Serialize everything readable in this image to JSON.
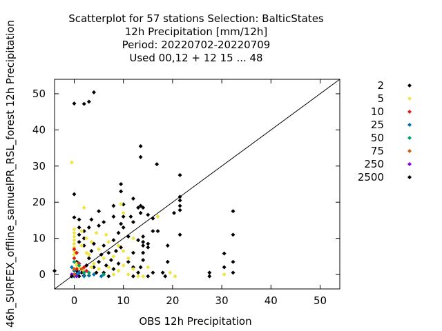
{
  "chart_data": {
    "type": "scatter",
    "title_lines": [
      "Scatterplot for   57 stations Selection: BalticStates",
      "12h Precipitation [mm/12h]",
      "Period: 20220702-20220709",
      "Used  00,12  + 12 15 ... 48"
    ],
    "xlabel": "OBS 12h Precipitation",
    "ylabel": "46h_SURFEX_offline_samuelPR_RSL_forest 12h Precipitation",
    "xlim": [
      -4,
      54
    ],
    "ylim": [
      -4,
      54
    ],
    "xticks": [
      "0",
      "10",
      "20",
      "30",
      "40",
      "50"
    ],
    "yticks": [
      "0",
      "10",
      "20",
      "30",
      "40",
      "50"
    ],
    "grid": false,
    "legend_position": "right",
    "diagonal_line": true,
    "series": [
      {
        "name": "2",
        "color": "#000000",
        "points": [
          [
            -4,
            1
          ],
          [
            0,
            47.3
          ],
          [
            2,
            47.2
          ],
          [
            3,
            47.8
          ],
          [
            4,
            50.4
          ],
          [
            0,
            22.2
          ],
          [
            0,
            15.8
          ],
          [
            1,
            15.2
          ],
          [
            13.5,
            35.5
          ],
          [
            13.5,
            32.5
          ],
          [
            16.8,
            30.5
          ],
          [
            9.5,
            25.0
          ],
          [
            9.5,
            23.0
          ],
          [
            12,
            21.0
          ],
          [
            10,
            19.4
          ],
          [
            13,
            18.5
          ],
          [
            13.5,
            19.0
          ],
          [
            14,
            18.5
          ],
          [
            13.5,
            17.0
          ],
          [
            15,
            16.5
          ],
          [
            21.5,
            27.5
          ],
          [
            21.5,
            21.5
          ],
          [
            21.5,
            20.5
          ],
          [
            21.5,
            19.0
          ],
          [
            21.5,
            17.8
          ],
          [
            20.3,
            17.0
          ],
          [
            32.3,
            17.5
          ],
          [
            32.3,
            11.0
          ],
          [
            32.3,
            3.5
          ],
          [
            32.3,
            0.5
          ],
          [
            30.5,
            5.8
          ],
          [
            30.5,
            2.0
          ],
          [
            27.5,
            0.5
          ],
          [
            27.5,
            -0.5
          ],
          [
            21.5,
            11.0
          ],
          [
            19,
            8.0
          ],
          [
            19,
            3.5
          ],
          [
            18.5,
            -0.5
          ],
          [
            16,
            15.5
          ],
          [
            16,
            12.0
          ],
          [
            14,
            10.5
          ],
          [
            14,
            9.0
          ],
          [
            14,
            8.0
          ],
          [
            14,
            6.0
          ],
          [
            14,
            4.0
          ],
          [
            13.5,
            2.0
          ],
          [
            13,
            0.5
          ],
          [
            12,
            2.0
          ],
          [
            12,
            -0.5
          ],
          [
            11,
            3.5
          ],
          [
            11,
            10.5
          ],
          [
            10,
            13.0
          ],
          [
            10,
            16.0
          ],
          [
            8,
            19.0
          ],
          [
            8,
            16.0
          ],
          [
            6,
            14.5
          ],
          [
            5,
            17.5
          ],
          [
            5,
            13.5
          ],
          [
            3.5,
            15.2
          ],
          [
            3,
            13.0
          ],
          [
            2,
            12.0
          ],
          [
            2,
            10.0
          ],
          [
            2,
            8.0
          ],
          [
            1,
            13.0
          ],
          [
            1,
            11.0
          ],
          [
            1,
            9.0
          ],
          [
            0.5,
            6.0
          ],
          [
            0.5,
            3.5
          ],
          [
            0.5,
            1.0
          ],
          [
            1.5,
            0.5
          ],
          [
            2.5,
            2.5
          ],
          [
            3,
            4.5
          ],
          [
            3.5,
            6.5
          ],
          [
            4,
            8.5
          ],
          [
            4,
            2.0
          ],
          [
            4.5,
            0.5
          ],
          [
            5,
            3.5
          ],
          [
            5.5,
            5.5
          ],
          [
            6,
            8.0
          ],
          [
            6.5,
            2.5
          ],
          [
            7,
            6.0
          ],
          [
            7.5,
            4.0
          ],
          [
            8,
            9.5
          ],
          [
            8.5,
            6.5
          ],
          [
            9,
            3.0
          ],
          [
            9,
            11.5
          ],
          [
            9.5,
            14.0
          ],
          [
            9.5,
            7.5
          ],
          [
            6,
            0.5
          ],
          [
            7,
            -0.5
          ],
          [
            8,
            1.5
          ],
          [
            2,
            -0.3
          ],
          [
            1,
            -0.5
          ],
          [
            0,
            -0.5
          ],
          [
            12,
            6.0
          ],
          [
            13,
            9.5
          ],
          [
            15,
            8.5
          ],
          [
            15,
            7.5
          ],
          [
            16,
            0.5
          ],
          [
            15,
            -0.5
          ],
          [
            18,
            0.5
          ],
          [
            17,
            12.0
          ],
          [
            11.5,
            16.0
          ],
          [
            12,
            14.5
          ]
        ]
      },
      {
        "name": "5",
        "color": "#f0e442",
        "points": [
          [
            -0.5,
            31.0
          ],
          [
            2,
            18.5
          ],
          [
            9.5,
            19.5
          ],
          [
            10,
            17.0
          ],
          [
            0,
            12.5
          ],
          [
            0,
            11.5
          ],
          [
            0,
            10.5
          ],
          [
            0,
            9.5
          ],
          [
            0,
            8.5
          ],
          [
            0,
            7.5
          ],
          [
            0,
            6.5
          ],
          [
            0,
            5.5
          ],
          [
            0,
            4.5
          ],
          [
            0.5,
            3.0
          ],
          [
            1,
            2.0
          ],
          [
            2,
            1.0
          ],
          [
            3,
            0.0
          ],
          [
            3,
            5.5
          ],
          [
            4,
            3.0
          ],
          [
            5,
            7.0
          ],
          [
            5,
            1.5
          ],
          [
            6,
            4.5
          ],
          [
            7,
            9.0
          ],
          [
            7,
            2.0
          ],
          [
            8,
            0.0
          ],
          [
            8,
            5.0
          ],
          [
            9,
            1.0
          ],
          [
            9,
            8.0
          ],
          [
            10,
            6.5
          ],
          [
            10,
            2.5
          ],
          [
            11,
            0.0
          ],
          [
            11,
            4.5
          ],
          [
            12,
            1.5
          ],
          [
            12,
            10.0
          ],
          [
            13,
            -0.5
          ],
          [
            14,
            -0.5
          ],
          [
            15,
            2.0
          ],
          [
            17,
            16.0
          ],
          [
            19.5,
            0.5
          ],
          [
            20.5,
            -0.5
          ],
          [
            30.5,
            0.0
          ],
          [
            1.5,
            12.0
          ],
          [
            2.5,
            10.0
          ],
          [
            1.5,
            8.0
          ],
          [
            2.5,
            6.0
          ],
          [
            3.5,
            9.0
          ],
          [
            4.5,
            11.5
          ],
          [
            3.5,
            2.0
          ],
          [
            6.5,
            11.0
          ],
          [
            0.5,
            2.5
          ]
        ]
      },
      {
        "name": "10",
        "color": "#e31a1c",
        "points": [
          [
            0,
            7.0
          ],
          [
            0.5,
            6.0
          ],
          [
            0,
            4.5
          ],
          [
            1,
            3.0
          ],
          [
            0.5,
            1.5
          ],
          [
            2,
            2.0
          ],
          [
            1,
            0.5
          ],
          [
            2.5,
            1.0
          ]
        ]
      },
      {
        "name": "25",
        "color": "#0072b2",
        "points": [
          [
            -0.5,
            2.0
          ],
          [
            0,
            1.0
          ],
          [
            0.5,
            0.0
          ],
          [
            0,
            -0.5
          ],
          [
            1,
            0.5
          ],
          [
            2,
            -0.5
          ],
          [
            3,
            -0.3
          ],
          [
            4,
            0.0
          ],
          [
            5.5,
            -0.5
          ],
          [
            -0.5,
            -0.5
          ]
        ]
      },
      {
        "name": "50",
        "color": "#009e73",
        "points": [
          [
            0,
            3.5
          ],
          [
            1,
            2.5
          ],
          [
            2,
            0.5
          ],
          [
            0.5,
            -0.5
          ],
          [
            3,
            0.5
          ],
          [
            6,
            0.0
          ]
        ]
      },
      {
        "name": "75",
        "color": "#d55e00",
        "points": [
          [
            0,
            1.5
          ],
          [
            1.5,
            1.5
          ],
          [
            0,
            0.0
          ]
        ]
      },
      {
        "name": "250",
        "color": "#8b00e6",
        "points": [
          [
            -0.5,
            0.0
          ],
          [
            0.5,
            -0.5
          ]
        ]
      },
      {
        "name": "2500",
        "color": "#000000",
        "points": [
          [
            -0.5,
            -0.5
          ]
        ]
      }
    ]
  }
}
